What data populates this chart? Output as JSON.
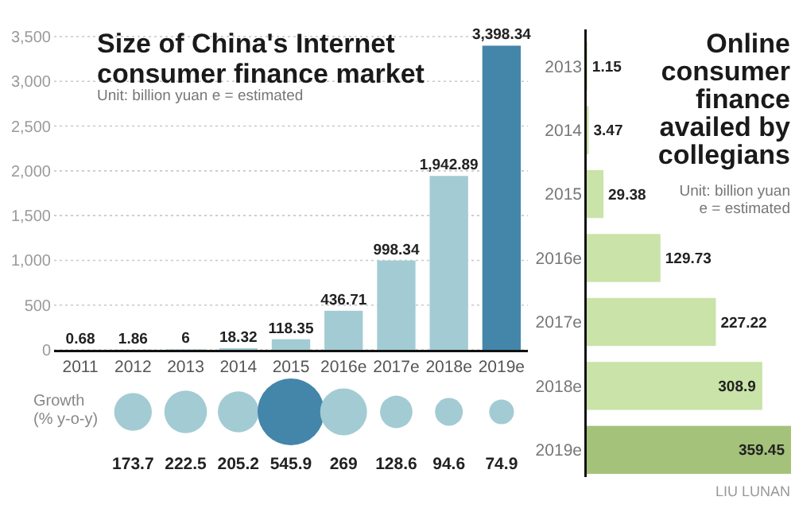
{
  "chart_data": [
    {
      "type": "bar",
      "title": "Size of China's Internet consumer finance market",
      "subtitle": "Unit: billion yuan e = estimated",
      "categories": [
        "2011",
        "2012",
        "2013",
        "2014",
        "2015",
        "2016e",
        "2017e",
        "2018e",
        "2019e"
      ],
      "values": [
        0.68,
        1.86,
        6,
        18.32,
        118.35,
        436.71,
        998.34,
        1942.89,
        3398.34
      ],
      "colors": [
        "#a3cbd3",
        "#a3cbd3",
        "#a3cbd3",
        "#a3cbd3",
        "#a3cbd3",
        "#a3cbd3",
        "#a3cbd3",
        "#a3cbd3",
        "#4386aa"
      ],
      "value_labels": [
        "0.68",
        "1.86",
        "6",
        "18.32",
        "118.35",
        "436.71",
        "998.34",
        "1,942.89",
        "3,398.34"
      ],
      "ylim": [
        0,
        3500
      ],
      "yticks": [
        0,
        500,
        {
          "value": 1000,
          "label": "1,000"
        },
        {
          "value": 1500,
          "label": "1,500"
        },
        {
          "value": 2000,
          "label": "2,000"
        },
        {
          "value": 2500,
          "label": "2,500"
        },
        {
          "value": 3000,
          "label": "3,000"
        },
        {
          "value": 3500,
          "label": "3,500"
        }
      ],
      "grid": "y"
    },
    {
      "type": "other",
      "ylabel": "Growth (% y-o-y)",
      "values": [
        173.7,
        222.5,
        205.2,
        545.9,
        269,
        128.6,
        94.6,
        74.9
      ],
      "colors": [
        "#a3cbd3",
        "#a3cbd3",
        "#a3cbd3",
        "#4386aa",
        "#a3cbd3",
        "#a3cbd3",
        "#a3cbd3",
        "#a3cbd3"
      ],
      "data_labels": true
    },
    {
      "type": "bar",
      "orientation": "horizontal",
      "title": "Online consumer finance availed by collegians",
      "subtitle": "Unit: billion yuan e = estimated",
      "categories": [
        "2013",
        "2014",
        "2015",
        "2016e",
        "2017e",
        "2018e",
        "2019e"
      ],
      "values": [
        1.15,
        3.47,
        29.38,
        129.73,
        227.22,
        308.9,
        359.45
      ],
      "colors": [
        "#c9e3a8",
        "#c9e3a8",
        "#c9e3a8",
        "#c9e3a8",
        "#c9e3a8",
        "#c9e3a8",
        "#a5c27a"
      ],
      "data_labels": true,
      "annotations": [
        "LIU LUNAN"
      ]
    }
  ]
}
